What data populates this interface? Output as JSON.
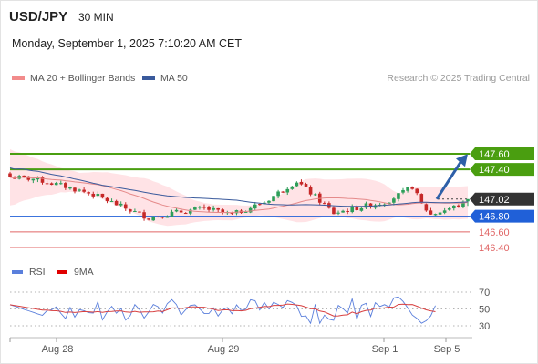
{
  "header": {
    "symbol": "USD/JPY",
    "timeframe": "30 MIN",
    "datetime": "Monday, September 1, 2025 7:10:20 AM CET"
  },
  "legend": {
    "bollinger_label": "MA 20 + Bollinger Bands",
    "ma50_label": "MA 50",
    "copyright": "Research © 2025 Trading Central"
  },
  "rsi_legend": {
    "rsi_label": "RSI",
    "ma_label": "9MA"
  },
  "colors": {
    "bullish": "#2e9e5a",
    "bearish": "#c62828",
    "resistance": "#4a9e10",
    "support": "#2060d8",
    "target": "#e06666",
    "bollinger_fill": "#ffe3e6",
    "ma20": "#e58a8a",
    "ma50": "#3a5a9c",
    "rsi": "#5a7fdc",
    "rsi_ma": "#d84040",
    "arrow": "#2d5fa8"
  },
  "chart_data": [
    {
      "type": "candlestick",
      "instrument": "USD/JPY",
      "timeframe": "30 MIN",
      "x_ticks": [
        "Aug 28",
        "Aug 29",
        "Sep 1",
        "Sep 5"
      ],
      "ylim": [
        146.3,
        148.2
      ],
      "price_levels": [
        {
          "label": "147.60",
          "value": 147.6,
          "kind": "resistance"
        },
        {
          "label": "147.40",
          "value": 147.4,
          "kind": "resistance"
        },
        {
          "label": "147.02",
          "value": 147.02,
          "kind": "current"
        },
        {
          "label": "146.80",
          "value": 146.8,
          "kind": "support"
        },
        {
          "label": "146.60",
          "value": 146.6,
          "kind": "target"
        },
        {
          "label": "146.40",
          "value": 146.4,
          "kind": "target"
        }
      ],
      "forecast_arrow": {
        "from": 147.02,
        "to": 147.55,
        "direction": "up"
      },
      "series": [
        {
          "name": "MA 20 + Bollinger Bands"
        },
        {
          "name": "MA 50"
        }
      ]
    },
    {
      "type": "line",
      "name": "RSI",
      "ylim": [
        20,
        80
      ],
      "y_ticks": [
        "70",
        "50",
        "30"
      ],
      "series": [
        {
          "name": "RSI"
        },
        {
          "name": "9MA"
        }
      ]
    }
  ]
}
